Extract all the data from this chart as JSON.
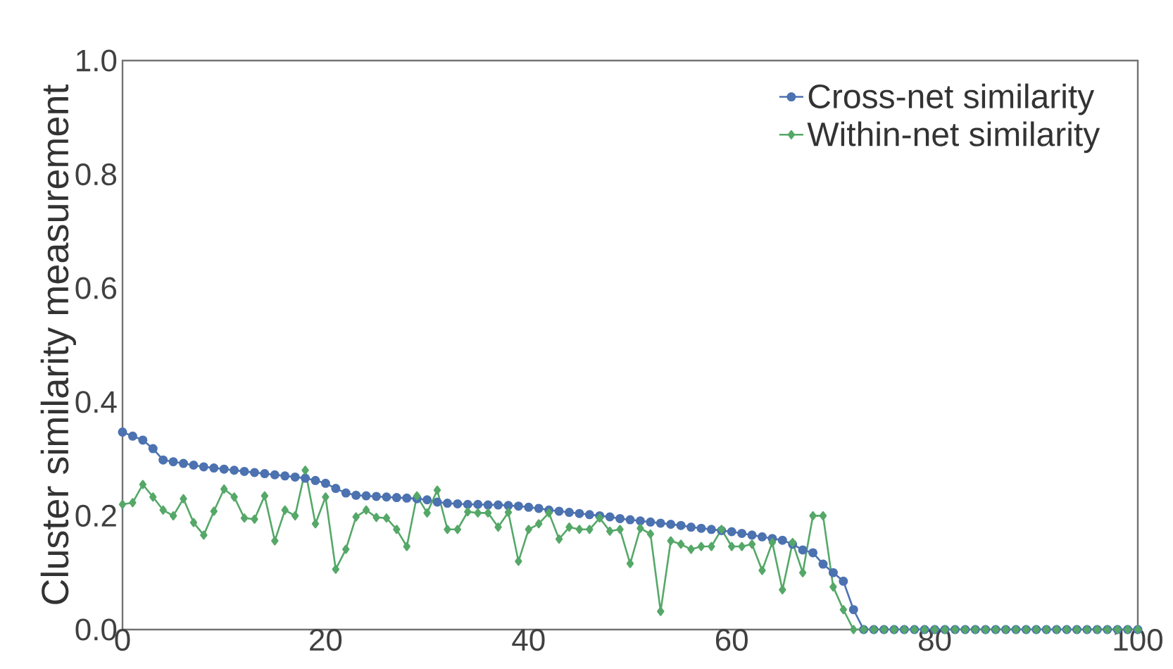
{
  "chart_data": {
    "type": "line",
    "ylabel": "Cluster similarity measurement",
    "x": [
      0,
      1,
      2,
      3,
      4,
      5,
      6,
      7,
      8,
      9,
      10,
      11,
      12,
      13,
      14,
      15,
      16,
      17,
      18,
      19,
      20,
      21,
      22,
      23,
      24,
      25,
      26,
      27,
      28,
      29,
      30,
      31,
      32,
      33,
      34,
      35,
      36,
      37,
      38,
      39,
      40,
      41,
      42,
      43,
      44,
      45,
      46,
      47,
      48,
      49,
      50,
      51,
      52,
      53,
      54,
      55,
      56,
      57,
      58,
      59,
      60,
      61,
      62,
      63,
      64,
      65,
      66,
      67,
      68,
      69,
      70,
      71,
      72,
      73,
      74,
      75,
      76,
      77,
      78,
      79,
      80,
      81,
      82,
      83,
      84,
      85,
      86,
      87,
      88,
      89,
      90,
      91,
      92,
      93,
      94,
      95,
      96,
      97,
      98,
      99,
      100
    ],
    "series": [
      {
        "name": "Cross-net similarity",
        "color": "#4c72b0",
        "marker": "circle",
        "values": [
          0.347,
          0.34,
          0.333,
          0.318,
          0.298,
          0.295,
          0.292,
          0.289,
          0.286,
          0.284,
          0.282,
          0.28,
          0.278,
          0.276,
          0.274,
          0.272,
          0.27,
          0.268,
          0.266,
          0.262,
          0.257,
          0.248,
          0.24,
          0.236,
          0.235,
          0.234,
          0.233,
          0.232,
          0.231,
          0.23,
          0.228,
          0.224,
          0.222,
          0.221,
          0.22,
          0.22,
          0.219,
          0.219,
          0.218,
          0.217,
          0.215,
          0.213,
          0.21,
          0.208,
          0.206,
          0.204,
          0.202,
          0.2,
          0.198,
          0.195,
          0.193,
          0.191,
          0.189,
          0.187,
          0.185,
          0.183,
          0.18,
          0.178,
          0.176,
          0.174,
          0.172,
          0.169,
          0.166,
          0.163,
          0.16,
          0.157,
          0.15,
          0.14,
          0.135,
          0.115,
          0.1,
          0.085,
          0.035,
          0,
          0,
          0,
          0,
          0,
          0,
          0,
          0,
          0,
          0,
          0,
          0,
          0,
          0,
          0,
          0,
          0,
          0,
          0,
          0,
          0,
          0,
          0,
          0,
          0,
          0,
          0,
          0
        ]
      },
      {
        "name": "Within-net similarity",
        "color": "#55a868",
        "marker": "diamond",
        "values": [
          0.22,
          0.223,
          0.255,
          0.233,
          0.21,
          0.2,
          0.23,
          0.188,
          0.166,
          0.208,
          0.247,
          0.233,
          0.196,
          0.194,
          0.235,
          0.156,
          0.21,
          0.2,
          0.28,
          0.186,
          0.233,
          0.106,
          0.141,
          0.198,
          0.21,
          0.197,
          0.196,
          0.176,
          0.146,
          0.235,
          0.205,
          0.245,
          0.176,
          0.176,
          0.207,
          0.205,
          0.205,
          0.18,
          0.206,
          0.12,
          0.176,
          0.186,
          0.205,
          0.159,
          0.18,
          0.176,
          0.176,
          0.196,
          0.173,
          0.176,
          0.116,
          0.178,
          0.168,
          0.032,
          0.156,
          0.15,
          0.141,
          0.146,
          0.146,
          0.176,
          0.146,
          0.146,
          0.15,
          0.104,
          0.153,
          0.07,
          0.153,
          0.1,
          0.2,
          0.2,
          0.075,
          0.035,
          0,
          0,
          0,
          0,
          0,
          0,
          0,
          0,
          0,
          0,
          0,
          0,
          0,
          0,
          0,
          0,
          0,
          0,
          0,
          0,
          0,
          0,
          0,
          0,
          0,
          0,
          0,
          0,
          0
        ]
      }
    ],
    "xlim": [
      0,
      100
    ],
    "xticks": [
      0,
      20,
      40,
      60,
      80,
      100
    ],
    "ylim": [
      0.0,
      1.0
    ],
    "yticks": [
      {
        "value": 0,
        "label": "0.0"
      },
      {
        "value": 0.2,
        "label": "0.2"
      },
      {
        "value": 0.4,
        "label": "0.4"
      },
      {
        "value": 0.6,
        "label": "0.6"
      },
      {
        "value": 0.8,
        "label": "0.8"
      },
      {
        "value": 1.0,
        "label": "1.0"
      }
    ],
    "grid": false,
    "legend": "top right",
    "line_style": "solid"
  }
}
